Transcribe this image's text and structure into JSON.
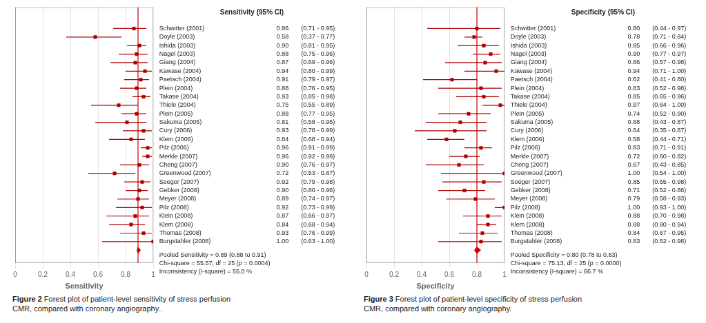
{
  "chart_data": [
    {
      "type": "forest",
      "title": "Sensitivity (95% CI)",
      "x_label": "Sensitivity",
      "categories": [
        "Schwitter (2001)",
        "Doyle (2003)",
        "Ishida (2003)",
        "Nagel (2003)",
        "Giang (2004)",
        "Kawase (2004)",
        "Paetsch (2004)",
        "Plein (2004)",
        "Takase (2004)",
        "Thiele (2004)",
        "Plein (2005)",
        "Sakuma (2005)",
        "Cury (2006)",
        "Klem (2006)",
        "Pilz (2006)",
        "Merkle (2007)",
        "Cheng (2007)",
        "Greenwood (2007)",
        "Seeger (2007)",
        "Gebker (2008)",
        "Meyer (2008)",
        "Pilz (2008)",
        "Klein (2008)",
        "Klem (2008)",
        "Thomas (2008)",
        "Burgstahler (2008)"
      ],
      "values": [
        0.86,
        0.58,
        0.9,
        0.88,
        0.87,
        0.94,
        0.91,
        0.88,
        0.93,
        0.75,
        0.88,
        0.81,
        0.93,
        0.84,
        0.96,
        0.96,
        0.9,
        0.72,
        0.92,
        0.9,
        0.89,
        0.92,
        0.87,
        0.84,
        0.93,
        1.0
      ],
      "value_labels": [
        "0.86",
        "0.58",
        "0.90",
        "0.88",
        "0.87",
        "0.94",
        "0.91",
        "0.88",
        "0.93",
        "0.75",
        "0.88",
        "0.81",
        "0.93",
        "0.84",
        "0.96",
        "0.96",
        "0.90",
        "0.72",
        "0.92",
        "0.90",
        "0.89",
        "0.92",
        "0.87",
        "0.84",
        "0.93",
        "1.00"
      ],
      "lower": [
        0.71,
        0.37,
        0.81,
        0.75,
        0.69,
        0.8,
        0.79,
        0.76,
        0.85,
        0.55,
        0.77,
        0.58,
        0.78,
        0.68,
        0.91,
        0.92,
        0.76,
        0.53,
        0.79,
        0.8,
        0.74,
        0.73,
        0.66,
        0.68,
        0.76,
        0.63
      ],
      "upper": [
        0.95,
        0.77,
        0.95,
        0.96,
        0.96,
        0.99,
        0.97,
        0.95,
        0.98,
        0.89,
        0.95,
        0.95,
        0.99,
        0.94,
        0.99,
        0.99,
        0.97,
        0.87,
        0.98,
        0.96,
        0.97,
        0.99,
        0.97,
        0.94,
        0.99,
        1.0
      ],
      "ci_labels": [
        "(0.71 - 0.95)",
        "(0.37 - 0.77)",
        "(0.81 - 0.95)",
        "(0.75 - 0.96)",
        "(0.69 - 0.96)",
        "(0.80 - 0.99)",
        "(0.79 - 0.97)",
        "(0.76 - 0.95)",
        "(0.85 - 0.98)",
        "(0.55 - 0.89)",
        "(0.77 - 0.95)",
        "(0.58 - 0.95)",
        "(0.78 - 0.99)",
        "(0.68 - 0.94)",
        "(0.91 - 0.99)",
        "(0.92 - 0.99)",
        "(0.76 - 0.97)",
        "(0.53 - 0.87)",
        "(0.79 - 0.98)",
        "(0.80 - 0.96)",
        "(0.74 - 0.97)",
        "(0.73 - 0.99)",
        "(0.66 - 0.97)",
        "(0.68 - 0.94)",
        "(0.76 - 0.99)",
        "(0.63 - 1.00)"
      ],
      "color": "#AA0000",
      "pooled": {
        "value": 0.89,
        "lower": 0.88,
        "upper": 0.91,
        "color": "#CC0000"
      },
      "annotations": [
        "Pooled Sensitivity = 0.89 (0.88 to 0.91)",
        "Chi-square = 55.57; df = 25 (p = 0.0004)",
        "Inconsistency (I-square) = 55.0 %"
      ],
      "xlim": [
        0,
        1
      ],
      "xticks": [
        0,
        0.2,
        0.4,
        0.6,
        0.8,
        1
      ],
      "grid": true,
      "tick_labels": "x",
      "figure_label": "Figure 2 ",
      "caption": "Forest plot of patient-level sensitivity of stress perfusion\nCMR, compared with coronary angiography.."
    },
    {
      "type": "forest",
      "title": "Specificity (95% CI)",
      "x_label": "Specificity",
      "categories": [
        "Schwitter (2001)",
        "Doyle (2003)",
        "Ishida (2003)",
        "Nagel (2003)",
        "Giang (2004)",
        "Kawase (2004)",
        "Paetsch (2004)",
        "Plein (2004)",
        "Takase (2004)",
        "Thiele (2004)",
        "Plein (2005)",
        "Sakuma (2005)",
        "Cury (2006)",
        "Klem (2006)",
        "Pilz (2006)",
        "Merkle (2007)",
        "Cheng (2007)",
        "Greenwood (2007)",
        "Seeger (2007)",
        "Gebker (2008)",
        "Meyer (2008)",
        "Pilz (2008)",
        "Klein (2008)",
        "Klem (2008)",
        "Thomas (2008)",
        "Burgstahler (2008)"
      ],
      "values": [
        0.8,
        0.78,
        0.85,
        0.9,
        0.86,
        0.94,
        0.62,
        0.83,
        0.85,
        0.97,
        0.74,
        0.68,
        0.64,
        0.58,
        0.83,
        0.72,
        0.67,
        1.0,
        0.85,
        0.71,
        0.79,
        1.0,
        0.88,
        0.88,
        0.84,
        0.83
      ],
      "value_labels": [
        "0.80",
        "0.78",
        "0.85",
        "0.90",
        "0.86",
        "0.94",
        "0.62",
        "0.83",
        "0.85",
        "0.97",
        "0.74",
        "0.68",
        "0.64",
        "0.58",
        "0.83",
        "0.72",
        "0.67",
        "1.00",
        "0.85",
        "0.71",
        "0.79",
        "1.00",
        "0.88",
        "0.88",
        "0.84",
        "0.83"
      ],
      "lower": [
        0.44,
        0.71,
        0.66,
        0.77,
        0.57,
        0.71,
        0.41,
        0.52,
        0.65,
        0.84,
        0.52,
        0.43,
        0.35,
        0.44,
        0.71,
        0.6,
        0.43,
        0.54,
        0.55,
        0.52,
        0.58,
        0.93,
        0.7,
        0.8,
        0.67,
        0.52
      ],
      "upper": [
        0.97,
        0.84,
        0.96,
        0.97,
        0.98,
        1.0,
        0.8,
        0.98,
        0.96,
        1.0,
        0.9,
        0.87,
        0.87,
        0.71,
        0.91,
        0.82,
        0.85,
        1.0,
        0.98,
        0.86,
        0.93,
        1.0,
        0.98,
        0.94,
        0.95,
        0.98
      ],
      "ci_labels": [
        "(0.44 - 0.97)",
        "(0.71 - 0.84)",
        "(0.66 - 0.96)",
        "(0.77 - 0.97)",
        "(0.57 - 0.98)",
        "(0.71 - 1.00)",
        "(0.41 - 0.80)",
        "(0.52 - 0.98)",
        "(0.65 - 0.96)",
        "(0.84 - 1.00)",
        "(0.52 - 0.90)",
        "(0.43 - 0.87)",
        "(0.35 - 0.87)",
        "(0.44 - 0.71)",
        "(0.71 - 0.91)",
        "(0.60 - 0.82)",
        "(0.43 - 0.85)",
        "(0.54 - 1.00)",
        "(0.55 - 0.98)",
        "(0.52 - 0.86)",
        "(0.58 - 0.93)",
        "(0.93 - 1.00)",
        "(0.70 - 0.98)",
        "(0.80 - 0.94)",
        "(0.67 - 0.95)",
        "(0.52 - 0.98)"
      ],
      "color": "#AA0000",
      "pooled": {
        "value": 0.8,
        "lower": 0.78,
        "upper": 0.83,
        "color": "#CC0000"
      },
      "annotations": [
        "Pooled Specificity = 0.80 (0.78 to 0.83)",
        "Chi-square = 75.13; df = 25 (p = 0.0000)",
        "Inconsistency (I-square) = 66.7 %"
      ],
      "xlim": [
        0,
        1
      ],
      "xticks": [
        0,
        0.2,
        0.4,
        0.6,
        0.8,
        1
      ],
      "grid": true,
      "tick_labels": "x",
      "figure_label": "Figure 3 ",
      "caption": "Forest plot of patient-level specificity of stress perfusion\nCMR, compared with coronary angiography."
    }
  ]
}
